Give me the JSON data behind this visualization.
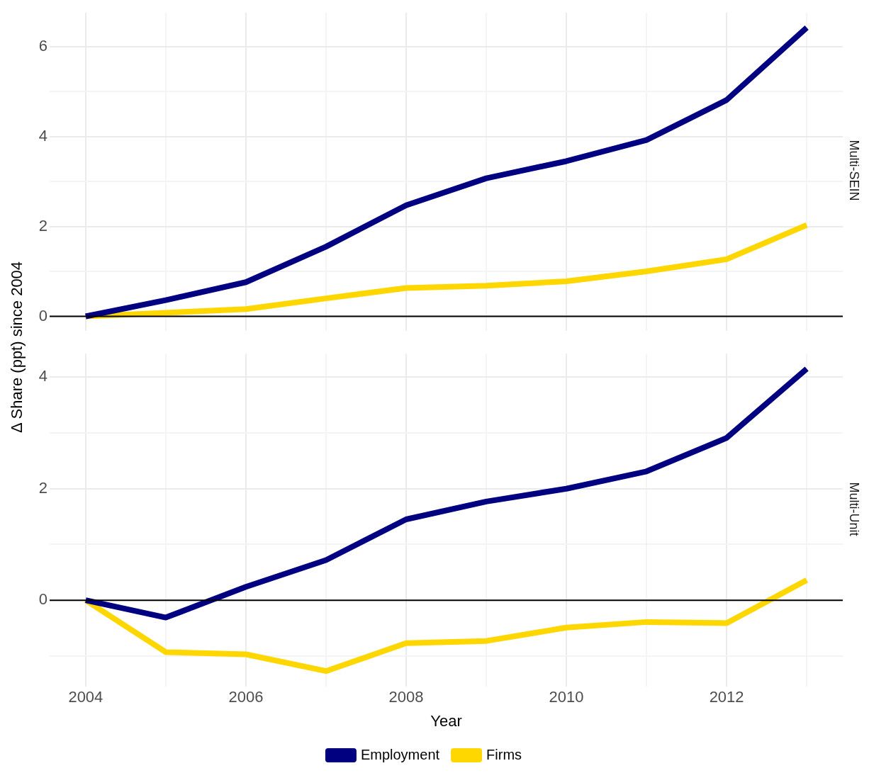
{
  "chart_data": [
    {
      "type": "line",
      "title": "Multi-SEIN",
      "ylabel": "Δ Share (ppt) since 2004",
      "x": [
        2004,
        2005,
        2006,
        2007,
        2008,
        2009,
        2010,
        2011,
        2012,
        2013
      ],
      "series": [
        {
          "color": "#000080",
          "values": [
            0,
            0.36,
            0.76,
            1.55,
            2.47,
            3.07,
            3.45,
            3.92,
            4.81,
            6.42
          ]
        },
        {
          "color": "#ffd700",
          "values": [
            0,
            0.08,
            0.16,
            0.4,
            0.63,
            0.68,
            0.78,
            1.0,
            1.27,
            2.03
          ]
        }
      ],
      "xlim": [
        2003.55,
        2013.45
      ],
      "xticks": [
        2004,
        {
          "value": 2005,
          "label": null
        },
        2006,
        {
          "value": 2007,
          "label": null
        },
        2008,
        {
          "value": 2009,
          "label": null
        },
        2010,
        {
          "value": 2011,
          "label": null
        },
        2012,
        {
          "value": 2013,
          "label": null
        }
      ],
      "ylim": [
        -0.32,
        6.75
      ],
      "yticks": [
        0,
        {
          "value": 1,
          "label": null
        },
        2,
        {
          "value": 3,
          "label": null
        },
        4,
        {
          "value": 5,
          "label": null
        },
        6
      ],
      "ref_lines": [
        {
          "axis": "y",
          "value": 0,
          "color": "#000000"
        }
      ],
      "grid": true,
      "tick_labels": "y",
      "marker": "none"
    },
    {
      "type": "line",
      "title": "Multi-Unit",
      "xlabel": "Year",
      "x": [
        2004,
        2005,
        2006,
        2007,
        2008,
        2009,
        2010,
        2011,
        2012,
        2013
      ],
      "series": [
        {
          "name": "Employment",
          "color": "#000080",
          "values": [
            0,
            -0.31,
            0.24,
            0.72,
            1.45,
            1.77,
            2.0,
            2.31,
            2.91,
            4.15
          ]
        },
        {
          "name": "Firms",
          "color": "#ffd700",
          "values": [
            0,
            -0.93,
            -0.97,
            -1.27,
            -0.77,
            -0.73,
            -0.49,
            -0.39,
            -0.41,
            0.36
          ]
        }
      ],
      "xlim": [
        2003.55,
        2013.45
      ],
      "xticks": [
        2004,
        {
          "value": 2005,
          "label": null
        },
        2006,
        {
          "value": 2007,
          "label": null
        },
        2008,
        {
          "value": 2009,
          "label": null
        },
        2010,
        {
          "value": 2011,
          "label": null
        },
        2012,
        {
          "value": 2013,
          "label": null
        }
      ],
      "ylim": [
        -1.55,
        4.42
      ],
      "yticks": [
        {
          "value": -1,
          "label": null
        },
        0,
        {
          "value": 1,
          "label": null
        },
        2,
        {
          "value": 3,
          "label": null
        },
        4
      ],
      "ref_lines": [
        {
          "axis": "y",
          "value": 0,
          "color": "#000000"
        }
      ],
      "grid": true,
      "legend": "bottom",
      "marker": "none"
    }
  ]
}
